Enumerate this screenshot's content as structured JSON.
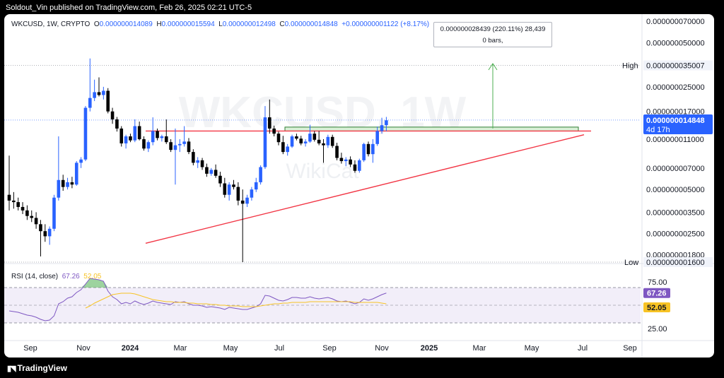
{
  "publisher_line": "Soldout_Vin published on TradingView.com, Feb 26, 2025 02:21 UTC-5",
  "footer_brand": "TradingView",
  "legend": {
    "symbol": "WKCUSD, 1W, CRYPTO",
    "o_label": "O",
    "o_value": "0.000000014089",
    "h_label": "H",
    "h_value": "0.000000015594",
    "l_label": "L",
    "l_value": "0.000000012498",
    "c_label": "C",
    "c_value": "0.000000014848",
    "change": "+0.000000001122 (+8.17%)"
  },
  "measure_tooltip": {
    "line1": "0.000000028439 (220.11%) 28,439",
    "line2": "0 bars,"
  },
  "watermark": "WKCUSD, 1W",
  "watermark_sub": "WikiCat",
  "price_axis": {
    "labels": [
      "0.000000070000",
      "0.000000050000",
      "0.000000025000",
      "0.000000017000",
      "0.000000011000",
      "0.000000007000",
      "0.000000005000",
      "0.000000003500",
      "0.000000002500",
      "0.000000001800"
    ],
    "high_label": "High",
    "high_value": "0.000000035007",
    "low_label": "Low",
    "low_value": "0.000000001600",
    "current_value": "0.000000014848",
    "current_countdown": "4d 17h"
  },
  "time_axis": {
    "labels": [
      "Sep",
      "Nov",
      "2024",
      "Mar",
      "May",
      "Jul",
      "Sep",
      "Nov",
      "2025",
      "Mar",
      "May",
      "Jul",
      "Sep"
    ]
  },
  "rsi": {
    "label": "RSI (14, close)",
    "value_rsi": "67.26",
    "value_ma": "52.05",
    "axis_labels": [
      "75.00",
      "25.00"
    ],
    "rsi_color": "#7e57c2",
    "ma_color": "#f7c325"
  },
  "colors": {
    "up": "#2962ff",
    "down": "#000000",
    "trendline": "#f23645",
    "target_arrow": "#4caf50",
    "zone_fill": "#d9f0d6",
    "zone_border": "#2e7d32"
  },
  "chart_data": {
    "type": "candlestick",
    "interval": "1W",
    "y_scale": "log",
    "ylim": [
      1.6e-09,
      7e-08
    ],
    "candles": [
      {
        "o": 4.6e-09,
        "h": 8.5e-09,
        "l": 3.6e-09,
        "c": 4.2e-09
      },
      {
        "o": 4.2e-09,
        "h": 4.8e-09,
        "l": 3.7e-09,
        "c": 4.1e-09
      },
      {
        "o": 4.1e-09,
        "h": 4.4e-09,
        "l": 3.6e-09,
        "c": 3.8e-09
      },
      {
        "o": 3.8e-09,
        "h": 4.1e-09,
        "l": 3.4e-09,
        "c": 3.6e-09
      },
      {
        "o": 3.6e-09,
        "h": 3.9e-09,
        "l": 3.1e-09,
        "c": 3.3e-09
      },
      {
        "o": 3.3e-09,
        "h": 3.6e-09,
        "l": 3e-09,
        "c": 3.2e-09
      },
      {
        "o": 3.2e-09,
        "h": 3.5e-09,
        "l": 2.7e-09,
        "c": 2.9e-09
      },
      {
        "o": 2.9e-09,
        "h": 3.1e-09,
        "l": 1.75e-09,
        "c": 2.6e-09
      },
      {
        "o": 2.6e-09,
        "h": 2.9e-09,
        "l": 2.2e-09,
        "c": 2.4e-09
      },
      {
        "o": 2.4e-09,
        "h": 2.8e-09,
        "l": 2.1e-09,
        "c": 2.7e-09
      },
      {
        "o": 2.7e-09,
        "h": 4.6e-09,
        "l": 2.6e-09,
        "c": 4.4e-09
      },
      {
        "o": 4.4e-09,
        "h": 1.15e-08,
        "l": 4.2e-09,
        "c": 5.8e-09
      },
      {
        "o": 5.8e-09,
        "h": 6.3e-09,
        "l": 4.9e-09,
        "c": 5.2e-09
      },
      {
        "o": 5.2e-09,
        "h": 6e-09,
        "l": 5e-09,
        "c": 5.6e-09
      },
      {
        "o": 5.6e-09,
        "h": 6.1e-09,
        "l": 5.1e-09,
        "c": 5.4e-09
      },
      {
        "o": 5.4e-09,
        "h": 7.8e-09,
        "l": 5.3e-09,
        "c": 7.6e-09
      },
      {
        "o": 7.6e-09,
        "h": 8.3e-09,
        "l": 7e-09,
        "c": 8e-09
      },
      {
        "o": 8e-09,
        "h": 1.85e-08,
        "l": 7.8e-09,
        "c": 1.8e-08
      },
      {
        "o": 1.8e-08,
        "h": 3.9e-08,
        "l": 1.7e-08,
        "c": 2.1e-08
      },
      {
        "o": 2.1e-08,
        "h": 2.8e-08,
        "l": 2e-08,
        "c": 2.3e-08
      },
      {
        "o": 2.3e-08,
        "h": 2.9e-08,
        "l": 2.15e-08,
        "c": 2.2e-08
      },
      {
        "o": 2.2e-08,
        "h": 2.5e-08,
        "l": 2.05e-08,
        "c": 2.35e-08
      },
      {
        "o": 2.35e-08,
        "h": 2.45e-08,
        "l": 1.65e-08,
        "c": 1.7e-08
      },
      {
        "o": 1.7e-08,
        "h": 1.8e-08,
        "l": 1.4e-08,
        "c": 1.5e-08
      },
      {
        "o": 1.5e-08,
        "h": 1.56e-08,
        "l": 1.24e-08,
        "c": 1.3e-08
      },
      {
        "o": 1.3e-08,
        "h": 1.35e-08,
        "l": 9.8e-09,
        "c": 1.03e-08
      },
      {
        "o": 1.03e-08,
        "h": 1.18e-08,
        "l": 9.5e-09,
        "c": 1.15e-08
      },
      {
        "o": 1.15e-08,
        "h": 1.2e-08,
        "l": 1.05e-08,
        "c": 1.08e-08
      },
      {
        "o": 1.08e-08,
        "h": 1.5e-08,
        "l": 1.05e-08,
        "c": 1.35e-08
      },
      {
        "o": 1.35e-08,
        "h": 1.45e-08,
        "l": 1.08e-08,
        "c": 1.1e-08
      },
      {
        "o": 1.1e-08,
        "h": 1.15e-08,
        "l": 9.2e-09,
        "c": 9.5e-09
      },
      {
        "o": 9.5e-09,
        "h": 1.08e-08,
        "l": 9e-09,
        "c": 1.05e-08
      },
      {
        "o": 1.05e-08,
        "h": 1.55e-08,
        "l": 1e-08,
        "c": 1.25e-08
      },
      {
        "o": 1.25e-08,
        "h": 1.3e-08,
        "l": 1.08e-08,
        "c": 1.12e-08
      },
      {
        "o": 1.12e-08,
        "h": 1.18e-08,
        "l": 1.06e-08,
        "c": 1.15e-08
      },
      {
        "o": 1.15e-08,
        "h": 1.5e-08,
        "l": 1.02e-08,
        "c": 1.05e-08
      },
      {
        "o": 1.05e-08,
        "h": 1.1e-08,
        "l": 9e-09,
        "c": 9.3e-09
      },
      {
        "o": 9.3e-09,
        "h": 1.3e-08,
        "l": 5.4e-09,
        "c": 1e-08
      },
      {
        "o": 1e-08,
        "h": 1.1e-08,
        "l": 9e-09,
        "c": 1.02e-08
      },
      {
        "o": 1.02e-08,
        "h": 1.35e-08,
        "l": 9.8e-09,
        "c": 1.06e-08
      },
      {
        "o": 1.06e-08,
        "h": 1.12e-08,
        "l": 8.7e-09,
        "c": 9e-09
      },
      {
        "o": 9e-09,
        "h": 9.4e-09,
        "l": 7.3e-09,
        "c": 7.6e-09
      },
      {
        "o": 7.6e-09,
        "h": 8.3e-09,
        "l": 7e-09,
        "c": 7.9e-09
      },
      {
        "o": 7.9e-09,
        "h": 8.2e-09,
        "l": 6.8e-09,
        "c": 7.1e-09
      },
      {
        "o": 7.1e-09,
        "h": 7.5e-09,
        "l": 6.1e-09,
        "c": 6.4e-09
      },
      {
        "o": 6.4e-09,
        "h": 7e-09,
        "l": 6.2e-09,
        "c": 6.8e-09
      },
      {
        "o": 6.8e-09,
        "h": 7.4e-09,
        "l": 6e-09,
        "c": 6.2e-09
      },
      {
        "o": 6.2e-09,
        "h": 6.6e-09,
        "l": 5.2e-09,
        "c": 5.5e-09
      },
      {
        "o": 5.5e-09,
        "h": 6e-09,
        "l": 4.4e-09,
        "c": 4.6e-09
      },
      {
        "o": 4.6e-09,
        "h": 5.6e-09,
        "l": 4.2e-09,
        "c": 5.4e-09
      },
      {
        "o": 5.4e-09,
        "h": 5.8e-09,
        "l": 5e-09,
        "c": 5.2e-09
      },
      {
        "o": 5.2e-09,
        "h": 5.6e-09,
        "l": 3.9e-09,
        "c": 4.2e-09
      },
      {
        "o": 4.2e-09,
        "h": 5e-09,
        "l": 1.6e-09,
        "c": 4e-09
      },
      {
        "o": 4e-09,
        "h": 4.6e-09,
        "l": 3.8e-09,
        "c": 4.4e-09
      },
      {
        "o": 4.4e-09,
        "h": 5.2e-09,
        "l": 4.2e-09,
        "c": 5e-09
      },
      {
        "o": 5e-09,
        "h": 6e-09,
        "l": 4.8e-09,
        "c": 5.6e-09
      },
      {
        "o": 5.6e-09,
        "h": 7.3e-09,
        "l": 5.4e-09,
        "c": 7.1e-09
      },
      {
        "o": 7.1e-09,
        "h": 1.85e-08,
        "l": 6.9e-09,
        "c": 1.55e-08
      },
      {
        "o": 1.55e-08,
        "h": 2.05e-08,
        "l": 1.2e-08,
        "c": 1.3e-08
      },
      {
        "o": 1.3e-08,
        "h": 1.36e-08,
        "l": 1.15e-08,
        "c": 1.2e-08
      },
      {
        "o": 1.2e-08,
        "h": 1.24e-08,
        "l": 1e-08,
        "c": 1.05e-08
      },
      {
        "o": 1.05e-08,
        "h": 1.16e-08,
        "l": 8.7e-09,
        "c": 9e-09
      },
      {
        "o": 9e-09,
        "h": 1.02e-08,
        "l": 8.5e-09,
        "c": 9.8e-09
      },
      {
        "o": 9.8e-09,
        "h": 1.18e-08,
        "l": 9.6e-09,
        "c": 1.15e-08
      },
      {
        "o": 1.15e-08,
        "h": 1.2e-08,
        "l": 1.08e-08,
        "c": 1.11e-08
      },
      {
        "o": 1.11e-08,
        "h": 1.16e-08,
        "l": 1e-08,
        "c": 1.03e-08
      },
      {
        "o": 1.03e-08,
        "h": 1.1e-08,
        "l": 9.8e-09,
        "c": 1.06e-08
      },
      {
        "o": 1.06e-08,
        "h": 1.38e-08,
        "l": 1.04e-08,
        "c": 1.2e-08
      },
      {
        "o": 1.2e-08,
        "h": 1.25e-08,
        "l": 1.06e-08,
        "c": 1.09e-08
      },
      {
        "o": 1.09e-08,
        "h": 1.25e-08,
        "l": 1e-08,
        "c": 1.03e-08
      },
      {
        "o": 1.03e-08,
        "h": 1.1e-08,
        "l": 7.6e-09,
        "c": 1e-08
      },
      {
        "o": 1e-08,
        "h": 1.18e-08,
        "l": 9.6e-09,
        "c": 1.14e-08
      },
      {
        "o": 1.14e-08,
        "h": 1.18e-08,
        "l": 9.6e-09,
        "c": 9.9e-09
      },
      {
        "o": 9.9e-09,
        "h": 1.04e-08,
        "l": 7.9e-09,
        "c": 8.2e-09
      },
      {
        "o": 8.2e-09,
        "h": 8.9e-09,
        "l": 7.5e-09,
        "c": 7.8e-09
      },
      {
        "o": 7.8e-09,
        "h": 8.3e-09,
        "l": 7.2e-09,
        "c": 8e-09
      },
      {
        "o": 8e-09,
        "h": 8.4e-09,
        "l": 7.1e-09,
        "c": 7.4e-09
      },
      {
        "o": 7.4e-09,
        "h": 7.9e-09,
        "l": 6.5e-09,
        "c": 6.7e-09
      },
      {
        "o": 6.7e-09,
        "h": 8.1e-09,
        "l": 6.5e-09,
        "c": 7.9e-09
      },
      {
        "o": 7.9e-09,
        "h": 1.04e-08,
        "l": 7.7e-09,
        "c": 1.02e-08
      },
      {
        "o": 1.02e-08,
        "h": 1.06e-08,
        "l": 8.4e-09,
        "c": 8.7e-09
      },
      {
        "o": 8.7e-09,
        "h": 1.1e-08,
        "l": 7.6e-09,
        "c": 1.02e-08
      },
      {
        "o": 1.02e-08,
        "h": 1.34e-08,
        "l": 9.9e-09,
        "c": 1.25e-08
      },
      {
        "o": 1.25e-08,
        "h": 1.54e-08,
        "l": 1.2e-08,
        "c": 1.37e-08
      },
      {
        "o": 1.37e-08,
        "h": 1.56e-08,
        "l": 1.25e-08,
        "c": 1.48e-08
      }
    ],
    "time_labels": [
      "Sep",
      "Nov",
      "2024",
      "Mar",
      "May",
      "Jul",
      "Sep",
      "Nov",
      "2025",
      "Mar",
      "May",
      "Jul",
      "Sep"
    ],
    "resistance_level": 1.25e-08,
    "resistance_zone": [
      1.25e-08,
      1.33e-08
    ],
    "target_level": 3.6e-08,
    "rsi_series": [
      42,
      41,
      40,
      38,
      36,
      35,
      33,
      30,
      28,
      29,
      35,
      52,
      55,
      60,
      62,
      68,
      72,
      80,
      88,
      87,
      86,
      84,
      70,
      62,
      58,
      52,
      54,
      52,
      56,
      53,
      51,
      53,
      56,
      54,
      53,
      52,
      51,
      55,
      54,
      55,
      52,
      50,
      50,
      49,
      47,
      48,
      47,
      46,
      44,
      47,
      46,
      45,
      44,
      44,
      46,
      48,
      52,
      64,
      63,
      60,
      57,
      56,
      58,
      61,
      61,
      60,
      60,
      62,
      60,
      59,
      60,
      61,
      59,
      56,
      55,
      56,
      54,
      52,
      54,
      59,
      57,
      59,
      62,
      65,
      67.26
    ],
    "rsi_ma_series": [
      null,
      null,
      null,
      null,
      null,
      null,
      null,
      null,
      null,
      null,
      null,
      null,
      null,
      null,
      null,
      null,
      null,
      46,
      49,
      53,
      56,
      59,
      62,
      65,
      66,
      67,
      67,
      67,
      66,
      64,
      62,
      60,
      58,
      57,
      56,
      55,
      55,
      54,
      54,
      54,
      53,
      53,
      52,
      52,
      52,
      51,
      51,
      50,
      50,
      49,
      49,
      49,
      48,
      48,
      48,
      48,
      49,
      50,
      51,
      52,
      52,
      53,
      53,
      54,
      54,
      54,
      54,
      55,
      55,
      55,
      55,
      55,
      55,
      55,
      55,
      55,
      55,
      54,
      54,
      54,
      54,
      54,
      54,
      53,
      52.05
    ],
    "rsi_ylim": [
      0,
      100
    ],
    "rsi_band": [
      25,
      75
    ]
  }
}
